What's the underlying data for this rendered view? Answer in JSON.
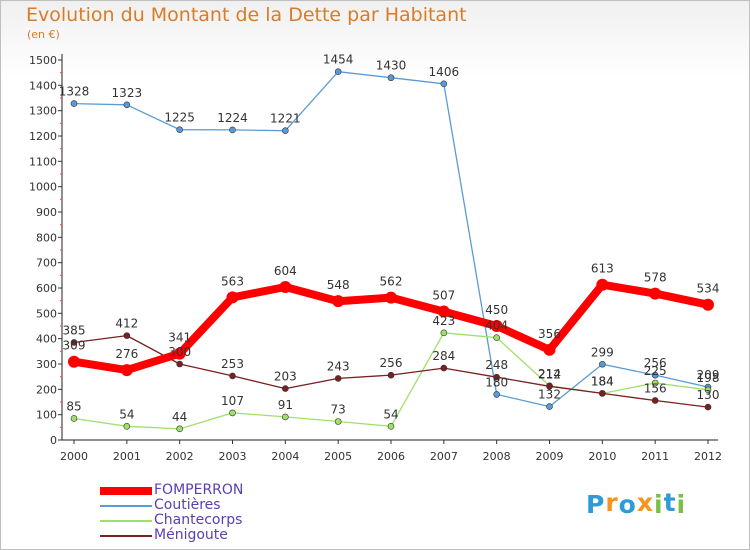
{
  "chart_data": {
    "type": "line",
    "title": "Evolution du Montant de la Dette par Habitant",
    "subtitle": "(en €)",
    "x": [
      "2000",
      "2001",
      "2002",
      "2003",
      "2004",
      "2005",
      "2006",
      "2007",
      "2008",
      "2009",
      "2010",
      "2011",
      "2012"
    ],
    "ylim": [
      0,
      1500
    ],
    "yticks": [
      0,
      100,
      200,
      300,
      400,
      500,
      600,
      700,
      800,
      900,
      1000,
      1100,
      1200,
      1300,
      1400,
      1500
    ],
    "grid": false,
    "legend_position": "bottom-left",
    "series": [
      {
        "name": "FOMPERRON",
        "color": "#ff0000",
        "values": [
          309,
          276,
          341,
          563,
          604,
          548,
          562,
          507,
          450,
          356,
          613,
          578,
          534
        ]
      },
      {
        "name": "Coutières",
        "color": "#5b9bd5",
        "values": [
          1328,
          1323,
          1225,
          1224,
          1221,
          1454,
          1430,
          1406,
          180,
          132,
          299,
          256,
          209
        ]
      },
      {
        "name": "Chantecorps",
        "color": "#9ee06a",
        "values": [
          85,
          54,
          44,
          107,
          91,
          73,
          54,
          423,
          404,
          214,
          184,
          225,
          198
        ]
      },
      {
        "name": "Ménigoute",
        "color": "#7b2020",
        "values": [
          385,
          412,
          300,
          253,
          203,
          243,
          256,
          284,
          248,
          212,
          184,
          156,
          130
        ]
      }
    ]
  },
  "logo": {
    "letters": [
      "P",
      "r",
      "o",
      "x",
      "i",
      "t",
      "i"
    ],
    "colors": [
      "#2e9ad8",
      "#f7941d",
      "#2e9ad8",
      "#f7941d",
      "#7ac143",
      "#2e9ad8",
      "#7ac143"
    ]
  }
}
